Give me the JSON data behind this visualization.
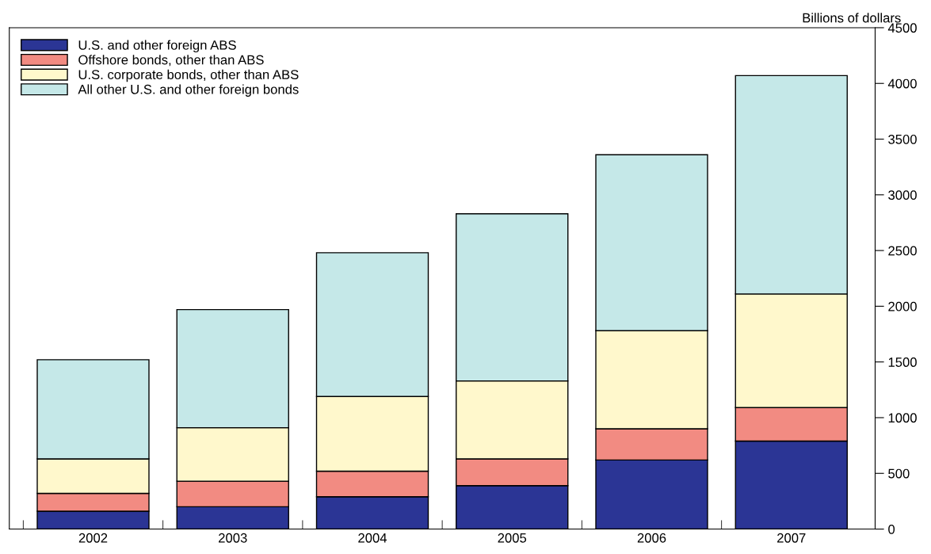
{
  "chart_data": {
    "type": "bar",
    "stacked": true,
    "ylabel": "Billions of dollars",
    "categories": [
      "2002",
      "2003",
      "2004",
      "2005",
      "2006",
      "2007"
    ],
    "series": [
      {
        "name": "U.S. and other foreign ABS",
        "color": "#2b3595",
        "values": [
          160,
          200,
          290,
          390,
          620,
          790
        ]
      },
      {
        "name": "Offshore bonds, other than ABS",
        "color": "#f28b82",
        "values": [
          160,
          230,
          230,
          240,
          280,
          300
        ]
      },
      {
        "name": "U.S. corporate bonds, other than ABS",
        "color": "#fff8cc",
        "values": [
          310,
          480,
          670,
          700,
          880,
          1020
        ]
      },
      {
        "name": "All other U.S. and other foreign bonds",
        "color": "#c5e8e8",
        "values": [
          890,
          1060,
          1290,
          1500,
          1580,
          1960
        ]
      }
    ],
    "ylim": [
      0,
      4500
    ],
    "yticks": [
      0,
      500,
      1000,
      1500,
      2000,
      2500,
      3000,
      3500,
      4000,
      4500
    ],
    "grid": false,
    "legend": "top left"
  }
}
